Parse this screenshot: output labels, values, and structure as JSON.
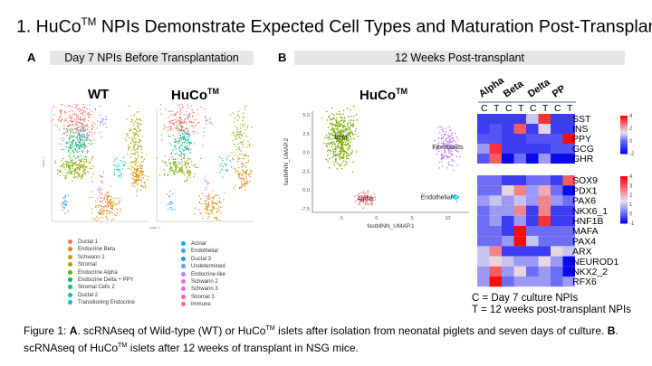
{
  "title": {
    "main": "1. HuCo",
    "sup": "TM",
    "rest": " NPIs Demonstrate Expected Cell Types and Maturation Post-Transplant"
  },
  "panel_a": {
    "letter": "A",
    "header": "Day 7 NPIs Before Transplantation",
    "sub_wt": "WT",
    "sub_huco": "HuCo",
    "sup": "TM",
    "xlabel": "UMAP_1",
    "ylabel": "UMAP_2",
    "legend_left": [
      {
        "label": "Ductal 1",
        "color": "#f8766d"
      },
      {
        "label": "Endocrine Beta",
        "color": "#e58700"
      },
      {
        "label": "Schwann 1",
        "color": "#c99800"
      },
      {
        "label": "Stromal",
        "color": "#a3a500"
      },
      {
        "label": "Endocrine Alpha",
        "color": "#6bb100"
      },
      {
        "label": "Endocrine Delta + PPY",
        "color": "#00ba38"
      },
      {
        "label": "Stromal Cells 2",
        "color": "#00bf7d"
      },
      {
        "label": "Ductal 2",
        "color": "#00c0af"
      },
      {
        "label": "Transitioning Endocrine",
        "color": "#00bcd8"
      }
    ],
    "legend_right": [
      {
        "label": "Acinar",
        "color": "#00b0f6"
      },
      {
        "label": "Endothelial",
        "color": "#35a2ff"
      },
      {
        "label": "Ductal 3",
        "color": "#1f9ae0"
      },
      {
        "label": "Undetermined",
        "color": "#619cff"
      },
      {
        "label": "Endocrine-like",
        "color": "#b983ff"
      },
      {
        "label": "Schwann 2",
        "color": "#e76bf3"
      },
      {
        "label": "Schwann 3",
        "color": "#fd61d1"
      },
      {
        "label": "Stromal 3",
        "color": "#ff67a4"
      },
      {
        "label": "Immune",
        "color": "#ff6c91"
      }
    ]
  },
  "panel_b": {
    "letter": "B",
    "header": "12 Weeks Post-transplant",
    "sub": "HuCo",
    "sup": "TM",
    "chart_data": {
      "type": "scatter",
      "xlabel": "fastMNN_UMAP.1",
      "ylabel": "fastMNN_UMAP.2",
      "xticks": [
        "-5",
        "0",
        "5",
        "10"
      ],
      "yticks": [
        "5.0",
        "2.5",
        "0.0",
        "-2.5",
        "-5.0",
        "-7.5"
      ],
      "xlim": [
        -9,
        13
      ],
      "ylim": [
        -8,
        5.5
      ],
      "clusters": [
        {
          "label": "Beta",
          "color": "#7cae00",
          "center": [
            -5,
            2
          ],
          "spread": [
            1.6,
            3
          ]
        },
        {
          "label": "Fibroblasts",
          "color": "#c77cff",
          "center": [
            10,
            0.7
          ],
          "spread": [
            1.2,
            2.2
          ]
        },
        {
          "label": "Alpha",
          "color": "#f8766d",
          "center": [
            -1.6,
            -6.2
          ],
          "spread": [
            1,
            0.9
          ]
        },
        {
          "label": "Endothelial",
          "color": "#00bfc4",
          "center": [
            11,
            -6
          ],
          "spread": [
            0.4,
            0.4
          ]
        }
      ]
    }
  },
  "heatmaps": {
    "groups": [
      "Alpha",
      "Beta",
      "Delta",
      "PP"
    ],
    "cols": [
      "C",
      "T"
    ],
    "top": {
      "genes": [
        "SST",
        "INS",
        "PPY",
        "GCG",
        "GHR"
      ],
      "scale": [
        -2,
        4
      ],
      "ticks": [
        "4",
        "2",
        "0",
        "-2"
      ],
      "values": [
        [
          -1,
          -1,
          -1,
          -1,
          1,
          3.5,
          -1,
          -1
        ],
        [
          -1,
          -0.5,
          -1,
          3,
          -1,
          1.5,
          -1,
          -1
        ],
        [
          -0.5,
          -0.5,
          -1,
          -1,
          -0.5,
          -0.5,
          -0.5,
          4
        ],
        [
          0.5,
          3.5,
          -1,
          -1,
          -1,
          -1,
          -0.5,
          -0.5
        ],
        [
          -0.5,
          3,
          -2,
          0,
          -2.5,
          0.5,
          -2,
          -2
        ]
      ]
    },
    "bottom": {
      "genes": [
        "SOX9",
        "PDX1",
        "PAX6",
        "NKX6_1",
        "HNF1B",
        "MAFA",
        "PAX4",
        "ARX",
        "NEUROD1",
        "NKX2_2",
        "RFX6"
      ],
      "scale": [
        -1,
        4
      ],
      "ticks": [
        "4",
        "3",
        "2",
        "1",
        "0",
        "-1"
      ],
      "values": [
        [
          0,
          0,
          -0.5,
          -0.5,
          0,
          0,
          -0.5,
          3
        ],
        [
          0,
          0,
          1.5,
          2.5,
          0.5,
          2,
          0,
          -1
        ],
        [
          0.5,
          1,
          0.5,
          1,
          0.5,
          2.5,
          0.5,
          0
        ],
        [
          0,
          0.5,
          0.5,
          2.5,
          -0.5,
          2.5,
          -0.5,
          -0.5
        ],
        [
          0,
          0.5,
          -0.5,
          0.5,
          -0.5,
          3.5,
          -0.5,
          -0.5
        ],
        [
          0,
          0,
          -0.5,
          4,
          0,
          0,
          0,
          0
        ],
        [
          0,
          0,
          0.5,
          4,
          1,
          0,
          0,
          0
        ],
        [
          1,
          2.5,
          -0.5,
          -0.5,
          -0.5,
          -0.5,
          1.5,
          1
        ],
        [
          1,
          1.5,
          1,
          0.5,
          0.5,
          1.5,
          0.5,
          -1
        ],
        [
          0.5,
          3,
          0.5,
          1.5,
          0,
          0.5,
          0,
          -1
        ],
        [
          0.5,
          4,
          0,
          0.5,
          0.5,
          0.5,
          0,
          0.5
        ]
      ]
    },
    "note_c": "C = Day 7 culture NPIs",
    "note_t": "T = 12 weeks post-transplant NPIs"
  },
  "caption": {
    "p1": "Figure 1: ",
    "a": "A",
    "p2": ". scRNAseq of Wild-type (WT) or HuCo",
    "sup": "TM",
    "p3": " islets after isolation from neonatal piglets and seven days of culture. ",
    "b": "B",
    "p4": ". scRNAseq of HuCo",
    "p5": " islets after 12 weeks of transplant in NSG mice."
  }
}
